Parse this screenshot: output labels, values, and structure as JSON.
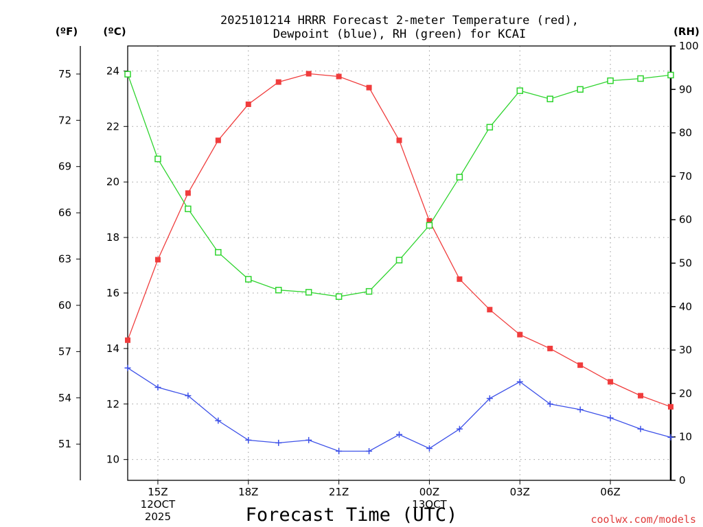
{
  "chart_data": {
    "type": "line",
    "title_lines": [
      "2025101214 HRRR Forecast 2-meter Temperature (red),",
      "Dewpoint (blue), RH (green) for KCAI"
    ],
    "units": {
      "fahrenheit": "(ºF)",
      "celsius": "(ºC)",
      "rh": "(RH)"
    },
    "xlabel": "Forecast Time (UTC)",
    "credit": "coolwx.com/models",
    "x_range": [
      14,
      32
    ],
    "x_hours": [
      14,
      15,
      16,
      17,
      18,
      19,
      20,
      21,
      22,
      23,
      24,
      25,
      26,
      27,
      28,
      29,
      30,
      31,
      32
    ],
    "x_ticks": [
      {
        "hour": 15,
        "lines": [
          "15Z",
          "12OCT",
          "2025"
        ]
      },
      {
        "hour": 18,
        "lines": [
          "18Z"
        ]
      },
      {
        "hour": 21,
        "lines": [
          "21Z"
        ]
      },
      {
        "hour": 24,
        "lines": [
          "00Z",
          "13OCT"
        ]
      },
      {
        "hour": 27,
        "lines": [
          "03Z"
        ]
      },
      {
        "hour": 30,
        "lines": [
          "06Z"
        ]
      }
    ],
    "celsius_axis": {
      "range": [
        9.25,
        24.9
      ],
      "ticks": [
        10,
        12,
        14,
        16,
        18,
        20,
        22,
        24
      ]
    },
    "fahrenheit_axis": {
      "ticks": [
        51,
        54,
        57,
        60,
        63,
        66,
        69,
        72,
        75
      ]
    },
    "rh_axis": {
      "range": [
        0,
        100
      ],
      "ticks": [
        0,
        10,
        20,
        30,
        40,
        50,
        60,
        70,
        80,
        90,
        100
      ]
    },
    "series": [
      {
        "name": "Temperature",
        "unit": "°C",
        "color": "#f03c3c",
        "marker": "filled-square",
        "values": [
          14.3,
          17.2,
          19.6,
          21.5,
          22.8,
          23.6,
          23.9,
          23.8,
          23.4,
          21.5,
          18.6,
          16.5,
          15.4,
          14.5,
          14.0,
          13.4,
          12.8,
          12.3,
          11.9
        ]
      },
      {
        "name": "Dewpoint",
        "unit": "°C",
        "color": "#3c50e8",
        "marker": "plus",
        "values": [
          13.3,
          12.6,
          12.3,
          11.4,
          10.7,
          10.6,
          10.7,
          10.3,
          10.3,
          10.9,
          10.4,
          11.1,
          12.2,
          12.8,
          12.0,
          11.8,
          11.5,
          11.1,
          10.8
        ]
      },
      {
        "name": "RH",
        "unit": "%",
        "color": "#2ed42e",
        "marker": "open-square",
        "values": [
          93.5,
          74.0,
          62.5,
          52.5,
          46.3,
          43.8,
          43.3,
          42.3,
          43.5,
          50.7,
          58.7,
          69.8,
          81.3,
          89.7,
          87.8,
          90.0,
          92.0,
          92.5,
          93.3
        ]
      }
    ]
  }
}
